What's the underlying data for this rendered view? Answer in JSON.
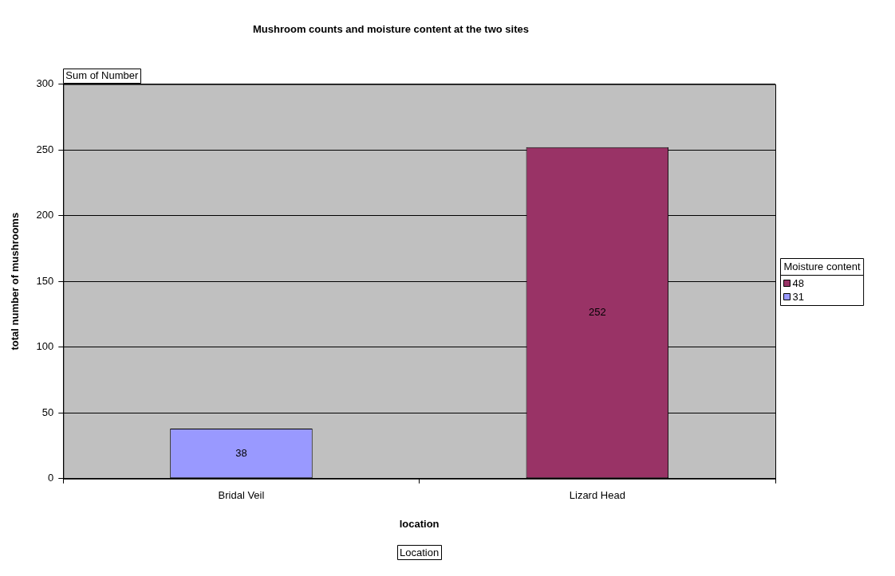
{
  "chart_data": {
    "type": "bar",
    "title": "Mushroom counts and moisture content at the two sites",
    "xlabel": "location",
    "ylabel": "total number of mushrooms",
    "legend_title": "Moisture content",
    "categories": [
      "Bridal Veil",
      "Lizard Head"
    ],
    "series": [
      {
        "name": "48",
        "color": "#993366",
        "values": [
          null,
          252
        ]
      },
      {
        "name": "31",
        "color": "#9999ff",
        "values": [
          38,
          null
        ]
      }
    ],
    "stacked": true,
    "ylim": [
      0,
      300
    ],
    "yticks": [
      0,
      50,
      100,
      150,
      200,
      250,
      300
    ],
    "grid": "y",
    "legend": "right",
    "data_labels": true,
    "annotations": [
      "Sum of Number",
      "Location"
    ]
  }
}
